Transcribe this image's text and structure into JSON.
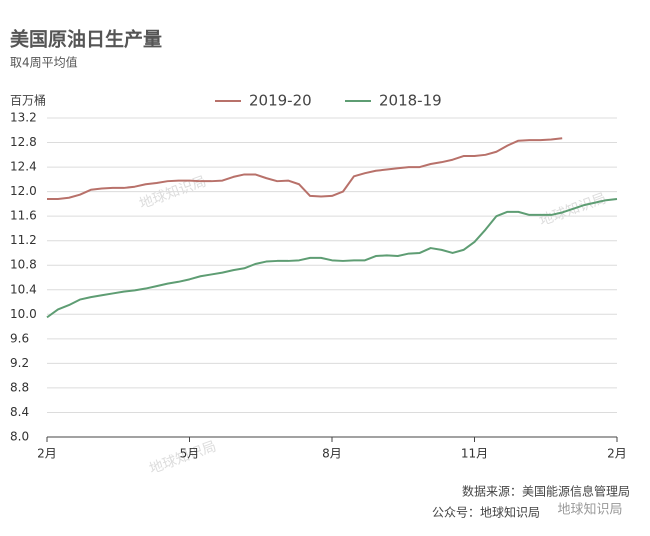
{
  "chart_data": {
    "type": "line",
    "title": "美国原油日生产量",
    "subtitle": "取4周平均值",
    "y_label": "百万桶",
    "xlim": [
      0,
      52
    ],
    "xticks": [
      {
        "value": 0,
        "label": "2月"
      },
      {
        "value": 13,
        "label": "5月"
      },
      {
        "value": 26,
        "label": "8月"
      },
      {
        "value": 39,
        "label": "11月"
      },
      {
        "value": 52,
        "label": "2月"
      }
    ],
    "ylim": [
      8.0,
      13.2
    ],
    "yticks": [
      {
        "value": 8,
        "label": "8.0"
      },
      8.4,
      8.8,
      9.2,
      9.6,
      {
        "value": 10,
        "label": "10.0"
      },
      10.4,
      10.8,
      11.2,
      11.6,
      {
        "value": 12,
        "label": "12.0"
      },
      12.4,
      12.8,
      13.2
    ],
    "grid": true,
    "legend": "top",
    "series": [
      {
        "name": "2019-20",
        "color": "#b8716a",
        "values": [
          11.88,
          11.88,
          11.9,
          11.95,
          12.03,
          12.05,
          12.06,
          12.06,
          12.08,
          12.12,
          12.14,
          12.17,
          12.18,
          12.18,
          12.17,
          12.17,
          12.18,
          12.24,
          12.28,
          12.28,
          12.22,
          12.17,
          12.18,
          12.12,
          11.93,
          11.92,
          11.93,
          12.0,
          12.25,
          12.3,
          12.34,
          12.36,
          12.38,
          12.4,
          12.4,
          12.45,
          12.48,
          12.52,
          12.58,
          12.58,
          12.6,
          12.65,
          12.75,
          12.83,
          12.84,
          12.84,
          12.85,
          12.87,
          null,
          null,
          null,
          null,
          null
        ]
      },
      {
        "name": "2018-19",
        "color": "#5e9d73",
        "values": [
          9.95,
          10.08,
          10.15,
          10.24,
          10.28,
          10.31,
          10.34,
          10.37,
          10.39,
          10.42,
          10.46,
          10.5,
          10.53,
          10.57,
          10.62,
          10.65,
          10.68,
          10.72,
          10.75,
          10.82,
          10.86,
          10.87,
          10.87,
          10.88,
          10.92,
          10.92,
          10.88,
          10.87,
          10.88,
          10.88,
          10.95,
          10.96,
          10.95,
          10.99,
          11.0,
          11.08,
          11.05,
          11.0,
          11.05,
          11.18,
          11.38,
          11.6,
          11.67,
          11.67,
          11.62,
          11.62,
          11.62,
          11.66,
          11.72,
          11.78,
          11.82,
          11.86,
          11.88
        ]
      }
    ],
    "source": "数据来源：美国能源信息管理局",
    "account": "公众号：地球知识局",
    "watermark": "地球知识局"
  }
}
